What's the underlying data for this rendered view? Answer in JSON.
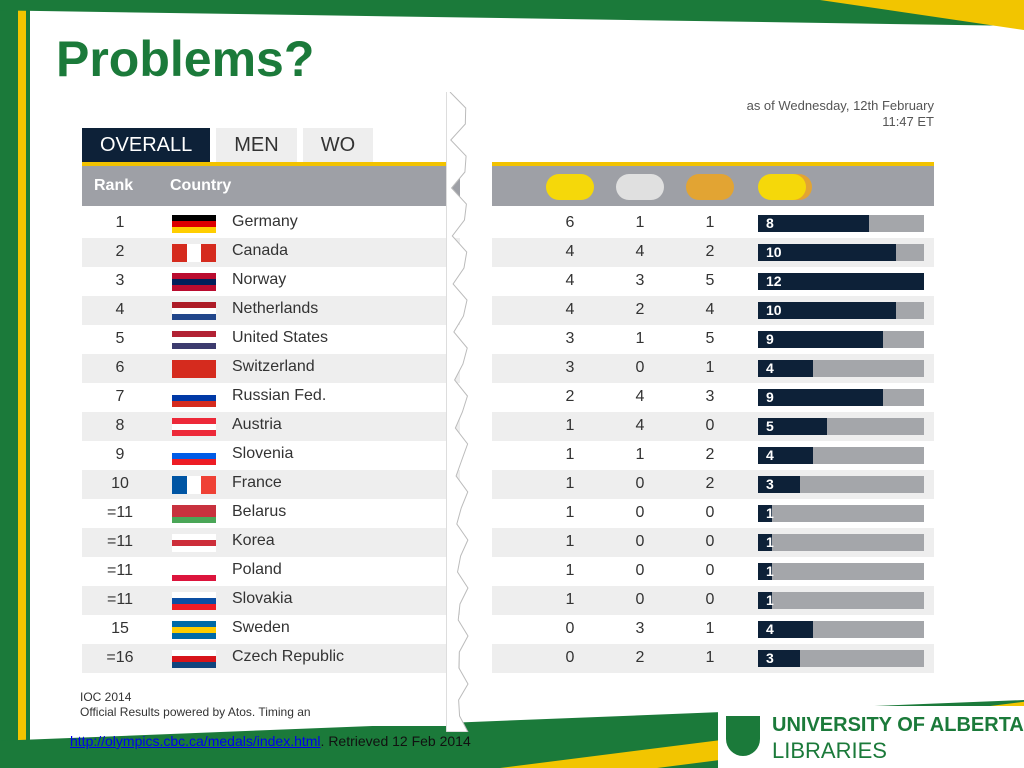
{
  "slide": {
    "title": "Problems?"
  },
  "tabs": [
    {
      "label": "OVERALL",
      "active": true
    },
    {
      "label": "MEN",
      "active": false
    },
    {
      "label": "WO",
      "active": false
    }
  ],
  "table": {
    "headers": {
      "rank": "Rank",
      "country": "Country"
    },
    "medal_colors": {
      "gold": "#f5d80a",
      "silver": "#e0e0e0",
      "bronze": "#e2a433",
      "total": "#f5d80a"
    },
    "rows": [
      {
        "rank": "1",
        "country": "Germany",
        "gold": "6",
        "silver": "1",
        "bronze": "1",
        "total": "8",
        "flag": [
          "#000000",
          "#dd0000",
          "#ffce00"
        ],
        "flag_dir": "h"
      },
      {
        "rank": "2",
        "country": "Canada",
        "gold": "4",
        "silver": "4",
        "bronze": "2",
        "total": "10",
        "flag": [
          "#d52b1e",
          "#ffffff",
          "#d52b1e"
        ],
        "flag_dir": "v"
      },
      {
        "rank": "3",
        "country": "Norway",
        "gold": "4",
        "silver": "3",
        "bronze": "5",
        "total": "12",
        "flag": [
          "#ba0c2f",
          "#00205b",
          "#ba0c2f"
        ],
        "flag_dir": "h"
      },
      {
        "rank": "4",
        "country": "Netherlands",
        "gold": "4",
        "silver": "2",
        "bronze": "4",
        "total": "10",
        "flag": [
          "#ae1c28",
          "#ffffff",
          "#21468b"
        ],
        "flag_dir": "h"
      },
      {
        "rank": "5",
        "country": "United States",
        "gold": "3",
        "silver": "1",
        "bronze": "5",
        "total": "9",
        "flag": [
          "#b22234",
          "#ffffff",
          "#3c3b6e"
        ],
        "flag_dir": "h"
      },
      {
        "rank": "6",
        "country": "Switzerland",
        "gold": "3",
        "silver": "0",
        "bronze": "1",
        "total": "4",
        "flag": [
          "#d52b1e",
          "#d52b1e",
          "#d52b1e"
        ],
        "flag_dir": "h"
      },
      {
        "rank": "7",
        "country": "Russian Fed.",
        "gold": "2",
        "silver": "4",
        "bronze": "3",
        "total": "9",
        "flag": [
          "#ffffff",
          "#0039a6",
          "#d52b1e"
        ],
        "flag_dir": "h"
      },
      {
        "rank": "8",
        "country": "Austria",
        "gold": "1",
        "silver": "4",
        "bronze": "0",
        "total": "5",
        "flag": [
          "#ed2939",
          "#ffffff",
          "#ed2939"
        ],
        "flag_dir": "h"
      },
      {
        "rank": "9",
        "country": "Slovenia",
        "gold": "1",
        "silver": "1",
        "bronze": "2",
        "total": "4",
        "flag": [
          "#ffffff",
          "#005ce6",
          "#ed1c24"
        ],
        "flag_dir": "h"
      },
      {
        "rank": "10",
        "country": "France",
        "gold": "1",
        "silver": "0",
        "bronze": "2",
        "total": "3",
        "flag": [
          "#0055a4",
          "#ffffff",
          "#ef4135"
        ],
        "flag_dir": "v"
      },
      {
        "rank": "=11",
        "country": "Belarus",
        "gold": "1",
        "silver": "0",
        "bronze": "0",
        "total": "1",
        "flag": [
          "#c8313e",
          "#c8313e",
          "#4aa657"
        ],
        "flag_dir": "h"
      },
      {
        "rank": "=11",
        "country": "Korea",
        "gold": "1",
        "silver": "0",
        "bronze": "0",
        "total": "1",
        "flag": [
          "#ffffff",
          "#cd2e3a",
          "#ffffff"
        ],
        "flag_dir": "h"
      },
      {
        "rank": "=11",
        "country": "Poland",
        "gold": "1",
        "silver": "0",
        "bronze": "0",
        "total": "1",
        "flag": [
          "#ffffff",
          "#ffffff",
          "#dc143c"
        ],
        "flag_dir": "h"
      },
      {
        "rank": "=11",
        "country": "Slovakia",
        "gold": "1",
        "silver": "0",
        "bronze": "0",
        "total": "1",
        "flag": [
          "#ffffff",
          "#0b4ea2",
          "#ee1c25"
        ],
        "flag_dir": "h"
      },
      {
        "rank": "15",
        "country": "Sweden",
        "gold": "0",
        "silver": "3",
        "bronze": "1",
        "total": "4",
        "flag": [
          "#006aa7",
          "#fecc00",
          "#006aa7"
        ],
        "flag_dir": "h"
      },
      {
        "rank": "=16",
        "country": "Czech Republic",
        "gold": "0",
        "silver": "2",
        "bronze": "1",
        "total": "3",
        "flag": [
          "#ffffff",
          "#d7141a",
          "#11457e"
        ],
        "flag_dir": "h"
      }
    ]
  },
  "timestamp": {
    "line1": "as of Wednesday, 12th February",
    "line2": "11:47 ET"
  },
  "footer": {
    "line1": "IOC 2014",
    "line2": "Official Results powered by Atos. Timing an"
  },
  "citation": {
    "url": "http://olympics.cbc.ca/medals/index.html",
    "rest": ". Retrieved 12 Feb 2014"
  },
  "logo": {
    "line1": "UNIVERSITY OF ALBERTA",
    "line2": "LIBRARIES"
  },
  "colors": {
    "green": "#1b7a3a",
    "yellow": "#f2c500",
    "navy": "#0d2138"
  }
}
